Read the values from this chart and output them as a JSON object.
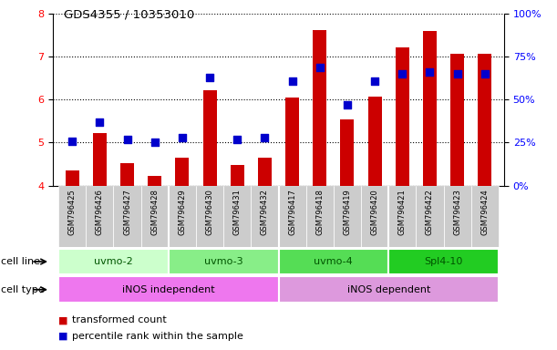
{
  "title": "GDS4355 / 10353010",
  "samples": [
    "GSM796425",
    "GSM796426",
    "GSM796427",
    "GSM796428",
    "GSM796429",
    "GSM796430",
    "GSM796431",
    "GSM796432",
    "GSM796417",
    "GSM796418",
    "GSM796419",
    "GSM796420",
    "GSM796421",
    "GSM796422",
    "GSM796423",
    "GSM796424"
  ],
  "transformed_count": [
    4.35,
    5.22,
    4.52,
    4.22,
    4.65,
    6.22,
    4.48,
    4.65,
    6.05,
    7.62,
    5.55,
    6.08,
    7.22,
    7.6,
    7.08,
    7.08
  ],
  "percentile_rank": [
    26,
    37,
    27,
    25,
    28,
    63,
    27,
    28,
    61,
    69,
    47,
    61,
    65,
    66,
    65,
    65
  ],
  "bar_color": "#cc0000",
  "dot_color": "#0000cc",
  "ylim_left": [
    4,
    8
  ],
  "ylim_right": [
    0,
    100
  ],
  "yticks_left": [
    4,
    5,
    6,
    7,
    8
  ],
  "yticks_right": [
    0,
    25,
    50,
    75,
    100
  ],
  "ytick_labels_right": [
    "0%",
    "25%",
    "50%",
    "75%",
    "100%"
  ],
  "cell_lines": [
    {
      "label": "uvmo-2",
      "start": 0,
      "end": 4,
      "color": "#ccffcc"
    },
    {
      "label": "uvmo-3",
      "start": 4,
      "end": 8,
      "color": "#88ee88"
    },
    {
      "label": "uvmo-4",
      "start": 8,
      "end": 12,
      "color": "#55dd55"
    },
    {
      "label": "Spl4-10",
      "start": 12,
      "end": 16,
      "color": "#22cc22"
    }
  ],
  "cell_types": [
    {
      "label": "iNOS independent",
      "start": 0,
      "end": 8,
      "color": "#ee77ee"
    },
    {
      "label": "iNOS dependent",
      "start": 8,
      "end": 16,
      "color": "#dd99dd"
    }
  ],
  "cell_line_label": "cell line",
  "cell_type_label": "cell type",
  "legend_items": [
    {
      "label": "transformed count",
      "color": "#cc0000"
    },
    {
      "label": "percentile rank within the sample",
      "color": "#0000cc"
    }
  ],
  "bar_width": 0.5,
  "dot_size": 35,
  "background_color": "#ffffff",
  "plot_bg_color": "#ffffff",
  "xtick_bg_color": "#cccccc"
}
